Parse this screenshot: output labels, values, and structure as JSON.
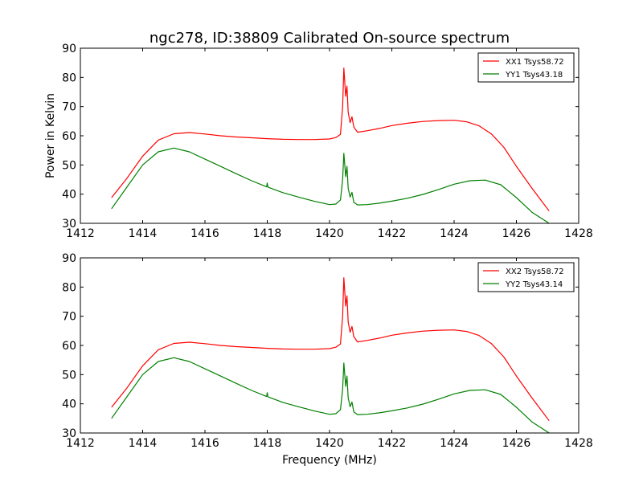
{
  "figure": {
    "title": "ngc278, ID:38809 Calibrated On-source spectrum",
    "ylabel": "Power in Kelvin",
    "xlabel": "Frequency (MHz)"
  },
  "colors": {
    "red": "#ff0000",
    "green": "#008000",
    "axes": "#000000"
  },
  "chart_data": [
    {
      "type": "line",
      "xlim": [
        1412,
        1428
      ],
      "ylim": [
        30,
        90
      ],
      "xticks": [
        1412,
        1414,
        1416,
        1418,
        1420,
        1422,
        1424,
        1426,
        1428
      ],
      "yticks": [
        30,
        40,
        50,
        60,
        70,
        80,
        90
      ],
      "legend_position": "top-right",
      "series": [
        {
          "name": "XX1 Tsys58.72",
          "color": "#ff0000",
          "x": [
            1413.0,
            1413.5,
            1414.0,
            1414.5,
            1415.0,
            1415.5,
            1416.0,
            1416.5,
            1417.0,
            1417.5,
            1418.0,
            1418.5,
            1419.0,
            1419.5,
            1420.0,
            1420.2,
            1420.35,
            1420.42,
            1420.46,
            1420.52,
            1420.56,
            1420.6,
            1420.66,
            1420.72,
            1420.78,
            1420.9,
            1421.2,
            1421.6,
            1422.0,
            1422.5,
            1423.0,
            1423.5,
            1424.0,
            1424.4,
            1424.8,
            1425.2,
            1425.6,
            1426.0,
            1426.5,
            1427.05
          ],
          "y": [
            38.8,
            45.5,
            53.0,
            58.5,
            60.7,
            61.1,
            60.6,
            60.0,
            59.6,
            59.3,
            59.0,
            58.8,
            58.7,
            58.7,
            58.9,
            59.4,
            60.5,
            70.0,
            83.2,
            73.5,
            77.0,
            68.0,
            64.5,
            66.5,
            63.0,
            61.2,
            61.7,
            62.5,
            63.5,
            64.3,
            64.9,
            65.2,
            65.3,
            64.8,
            63.4,
            60.6,
            56.0,
            49.5,
            42.0,
            34.2
          ]
        },
        {
          "name": "YY1 Tsys43.18",
          "color": "#008000",
          "x": [
            1413.0,
            1413.5,
            1414.0,
            1414.5,
            1415.0,
            1415.5,
            1416.0,
            1416.5,
            1417.0,
            1417.5,
            1417.98,
            1418.0,
            1418.02,
            1418.5,
            1419.0,
            1419.5,
            1420.0,
            1420.2,
            1420.35,
            1420.42,
            1420.46,
            1420.52,
            1420.56,
            1420.6,
            1420.66,
            1420.72,
            1420.78,
            1420.9,
            1421.2,
            1421.6,
            1422.0,
            1422.5,
            1423.0,
            1423.5,
            1424.0,
            1424.5,
            1425.0,
            1425.5,
            1426.0,
            1426.5,
            1427.05
          ],
          "y": [
            35.0,
            42.5,
            50.0,
            54.5,
            55.8,
            54.5,
            52.0,
            49.5,
            47.0,
            44.6,
            42.5,
            43.8,
            42.4,
            40.5,
            39.0,
            37.6,
            36.4,
            36.6,
            38.0,
            45.0,
            54.0,
            46.0,
            49.5,
            42.0,
            39.0,
            40.6,
            37.2,
            36.3,
            36.4,
            36.9,
            37.6,
            38.6,
            39.9,
            41.6,
            43.4,
            44.6,
            44.8,
            43.2,
            38.8,
            33.8,
            30.0
          ]
        }
      ]
    },
    {
      "type": "line",
      "xlim": [
        1412,
        1428
      ],
      "ylim": [
        30,
        90
      ],
      "xticks": [
        1412,
        1414,
        1416,
        1418,
        1420,
        1422,
        1424,
        1426,
        1428
      ],
      "yticks": [
        30,
        40,
        50,
        60,
        70,
        80,
        90
      ],
      "legend_position": "top-right",
      "series": [
        {
          "name": "XX2 Tsys58.72",
          "color": "#ff0000",
          "x": [
            1413.0,
            1413.5,
            1414.0,
            1414.5,
            1415.0,
            1415.5,
            1416.0,
            1416.5,
            1417.0,
            1417.5,
            1418.0,
            1418.5,
            1419.0,
            1419.5,
            1420.0,
            1420.2,
            1420.35,
            1420.42,
            1420.46,
            1420.52,
            1420.56,
            1420.6,
            1420.66,
            1420.72,
            1420.78,
            1420.9,
            1421.2,
            1421.6,
            1422.0,
            1422.5,
            1423.0,
            1423.5,
            1424.0,
            1424.4,
            1424.8,
            1425.2,
            1425.6,
            1426.0,
            1426.5,
            1427.05
          ],
          "y": [
            38.8,
            45.5,
            53.0,
            58.5,
            60.7,
            61.1,
            60.6,
            60.0,
            59.6,
            59.3,
            59.0,
            58.8,
            58.7,
            58.7,
            58.9,
            59.4,
            60.5,
            70.0,
            83.2,
            73.5,
            77.0,
            68.0,
            64.5,
            66.5,
            63.0,
            61.2,
            61.7,
            62.5,
            63.5,
            64.3,
            64.9,
            65.2,
            65.3,
            64.8,
            63.4,
            60.6,
            56.0,
            49.5,
            42.0,
            34.2
          ]
        },
        {
          "name": "YY2 Tsys43.14",
          "color": "#008000",
          "x": [
            1413.0,
            1413.5,
            1414.0,
            1414.5,
            1415.0,
            1415.5,
            1416.0,
            1416.5,
            1417.0,
            1417.5,
            1417.98,
            1418.0,
            1418.02,
            1418.5,
            1419.0,
            1419.5,
            1420.0,
            1420.2,
            1420.35,
            1420.42,
            1420.46,
            1420.52,
            1420.56,
            1420.6,
            1420.66,
            1420.72,
            1420.78,
            1420.9,
            1421.2,
            1421.6,
            1422.0,
            1422.5,
            1423.0,
            1423.5,
            1424.0,
            1424.5,
            1425.0,
            1425.5,
            1426.0,
            1426.5,
            1427.05
          ],
          "y": [
            35.0,
            42.5,
            50.0,
            54.5,
            55.8,
            54.5,
            52.0,
            49.5,
            47.0,
            44.6,
            42.5,
            43.8,
            42.4,
            40.5,
            39.0,
            37.6,
            36.4,
            36.6,
            38.0,
            45.0,
            54.0,
            46.0,
            49.5,
            42.0,
            39.0,
            40.6,
            37.2,
            36.3,
            36.4,
            36.9,
            37.6,
            38.6,
            39.9,
            41.6,
            43.4,
            44.6,
            44.8,
            43.2,
            38.8,
            33.8,
            30.0
          ]
        }
      ]
    }
  ]
}
